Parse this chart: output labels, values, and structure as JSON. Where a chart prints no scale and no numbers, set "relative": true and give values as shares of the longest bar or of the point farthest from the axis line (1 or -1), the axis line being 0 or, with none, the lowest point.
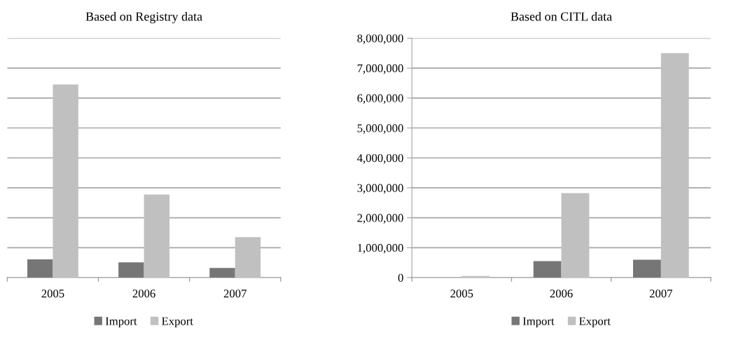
{
  "chart_data": [
    {
      "type": "bar",
      "title": "Based on Registry data",
      "categories": [
        "2005",
        "2006",
        "2007"
      ],
      "relative": true,
      "grid": "y",
      "legend": "bottom",
      "series": [
        {
          "name": "Import",
          "color": "#767676",
          "values": [
            0.094,
            0.079,
            0.05
          ]
        },
        {
          "name": "Export",
          "color": "#c0c0c0",
          "values": [
            1,
            0.43,
            0.21
          ]
        }
      ]
    },
    {
      "type": "bar",
      "title": "Based on CITL data",
      "categories": [
        "2005",
        "2006",
        "2007"
      ],
      "grid": "y",
      "legend": "bottom",
      "ylim": [
        0,
        8000000
      ],
      "yticks": [
        {
          "value": 0,
          "label": "0"
        },
        {
          "value": 1000000,
          "label": "1,000,000"
        },
        {
          "value": 2000000,
          "label": "2,000,000"
        },
        {
          "value": 3000000,
          "label": "3,000,000"
        },
        {
          "value": 4000000,
          "label": "4,000,000"
        },
        {
          "value": 5000000,
          "label": "5,000,000"
        },
        {
          "value": 6000000,
          "label": "6,000,000"
        },
        {
          "value": 7000000,
          "label": "7,000,000"
        },
        {
          "value": 8000000,
          "label": "8,000,000"
        }
      ],
      "series": [
        {
          "name": "Import",
          "color": "#767676",
          "values": [
            0,
            550000,
            600000
          ]
        },
        {
          "name": "Export",
          "color": "#c0c0c0",
          "values": [
            50000,
            2820000,
            7500000
          ]
        }
      ]
    }
  ]
}
